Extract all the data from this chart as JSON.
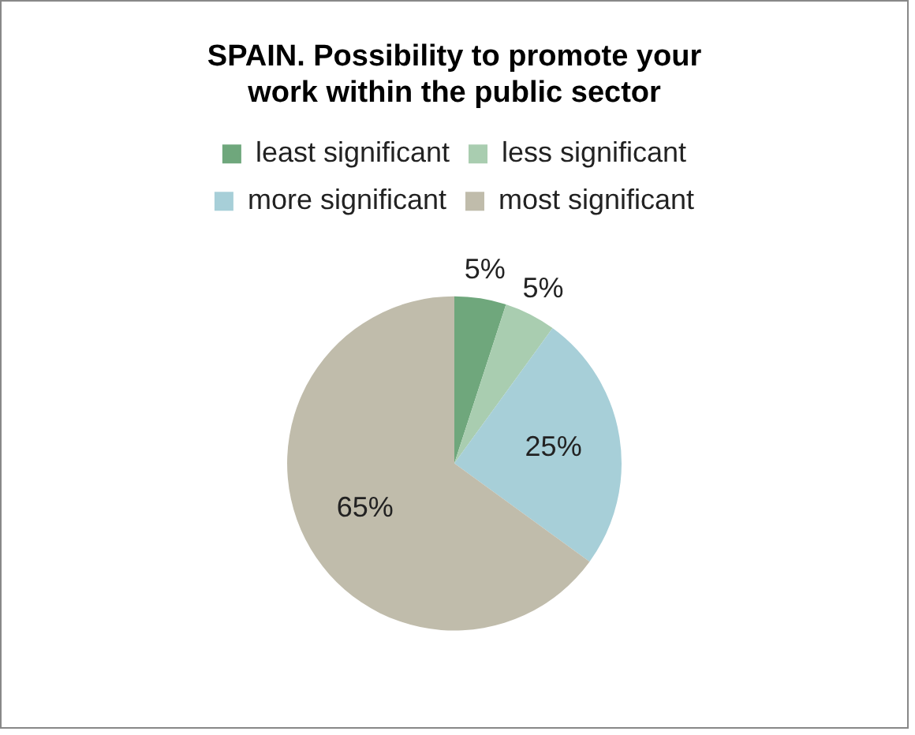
{
  "chart_data": {
    "type": "pie",
    "title": "SPAIN. Possibility to promote your work within the public sector",
    "categories": [
      "least significant",
      "less significant",
      "more significant",
      "most significant"
    ],
    "values": [
      5,
      5,
      25,
      65
    ],
    "value_labels": [
      "5%",
      "5%",
      "25%",
      "65%"
    ],
    "colors": [
      "#6fa77c",
      "#a9cdb0",
      "#a7cfd8",
      "#c0bcab"
    ],
    "legend": "top"
  }
}
